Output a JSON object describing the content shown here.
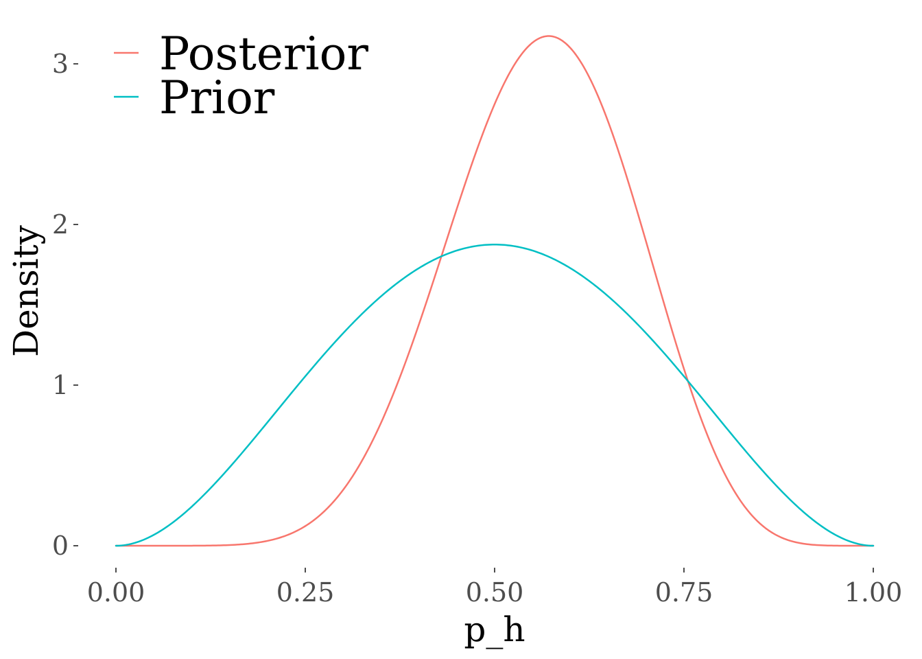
{
  "chart_data": {
    "type": "line",
    "xlabel": "p_h",
    "ylabel": "Density",
    "xlim": [
      0,
      1
    ],
    "ylim": [
      0,
      3.15
    ],
    "x_ticks": [
      "0.00",
      "0.25",
      "0.50",
      "0.75",
      "1.00"
    ],
    "y_ticks": [
      "0",
      "1",
      "2",
      "3"
    ],
    "grid": false,
    "legend": {
      "position": "top-left",
      "entries": [
        "Posterior",
        "Prior"
      ]
    },
    "series": [
      {
        "name": "Posterior",
        "color": "#F8766D",
        "distribution": "Beta(9, 7)",
        "x": [
          0,
          0.05,
          0.1,
          0.15,
          0.2,
          0.25,
          0.3,
          0.35,
          0.4,
          0.45,
          0.5,
          0.55,
          0.6,
          0.65,
          0.7,
          0.75,
          0.8,
          0.85,
          0.9,
          0.95,
          1
        ],
        "y": [
          0,
          0.0,
          0.002,
          0.013,
          0.05,
          0.131,
          0.352,
          0.767,
          1.361,
          2.012,
          2.749,
          3.116,
          3.073,
          2.601,
          1.85,
          1.084,
          0.504,
          0.17,
          0.034,
          0.003,
          0
        ]
      },
      {
        "name": "Prior",
        "color": "#00BFC4",
        "distribution": "Beta(3, 3)",
        "x": [
          0,
          0.05,
          0.1,
          0.15,
          0.2,
          0.25,
          0.3,
          0.35,
          0.4,
          0.45,
          0.5,
          0.55,
          0.6,
          0.65,
          0.7,
          0.75,
          0.8,
          0.85,
          0.9,
          0.95,
          1
        ],
        "y": [
          0,
          0.068,
          0.243,
          0.488,
          0.768,
          1.055,
          1.323,
          1.553,
          1.728,
          1.838,
          1.875,
          1.838,
          1.728,
          1.553,
          1.323,
          1.055,
          0.768,
          0.488,
          0.243,
          0.068,
          0
        ]
      }
    ]
  }
}
